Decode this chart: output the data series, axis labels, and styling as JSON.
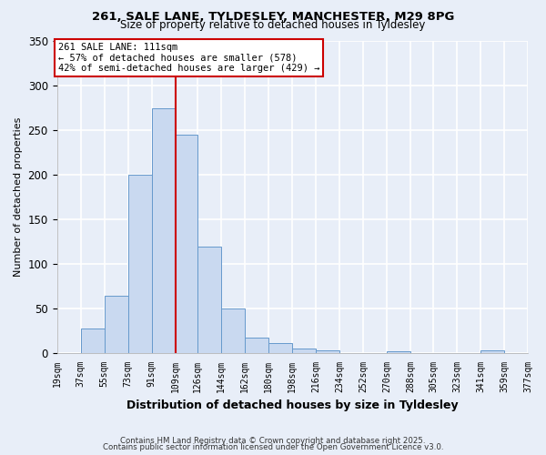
{
  "title1": "261, SALE LANE, TYLDESLEY, MANCHESTER, M29 8PG",
  "title2": "Size of property relative to detached houses in Tyldesley",
  "xlabel": "Distribution of detached houses by size in Tyldesley",
  "ylabel": "Number of detached properties",
  "bar_color": "#c9d9f0",
  "bar_edge_color": "#6699cc",
  "background_color": "#e8eef8",
  "plot_bg_color": "#e8eef8",
  "grid_color": "#ffffff",
  "bin_edges": [
    19,
    37,
    55,
    73,
    91,
    109,
    126,
    144,
    162,
    180,
    198,
    216,
    234,
    252,
    270,
    288,
    305,
    323,
    341,
    359,
    377
  ],
  "bar_heights": [
    0,
    28,
    65,
    200,
    275,
    245,
    120,
    50,
    18,
    11,
    5,
    3,
    0,
    0,
    2,
    0,
    0,
    0,
    3,
    0
  ],
  "tick_labels": [
    "19sqm",
    "37sqm",
    "55sqm",
    "73sqm",
    "91sqm",
    "109sqm",
    "126sqm",
    "144sqm",
    "162sqm",
    "180sqm",
    "198sqm",
    "216sqm",
    "234sqm",
    "252sqm",
    "270sqm",
    "288sqm",
    "305sqm",
    "323sqm",
    "341sqm",
    "359sqm",
    "377sqm"
  ],
  "ylim": [
    0,
    350
  ],
  "yticks": [
    0,
    50,
    100,
    150,
    200,
    250,
    300,
    350
  ],
  "vline_x": 109,
  "vline_color": "#cc0000",
  "annotation_title": "261 SALE LANE: 111sqm",
  "annotation_line1": "← 57% of detached houses are smaller (578)",
  "annotation_line2": "42% of semi-detached houses are larger (429) →",
  "footer1": "Contains HM Land Registry data © Crown copyright and database right 2025.",
  "footer2": "Contains public sector information licensed under the Open Government Licence v3.0."
}
